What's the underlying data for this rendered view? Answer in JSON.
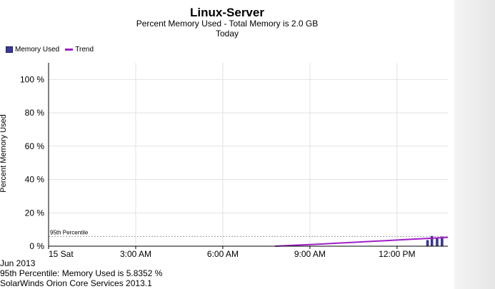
{
  "chart": {
    "title": "Linux-Server",
    "subtitle": "Percent Memory Used - Total Memory is 2.0 GB",
    "period": "Today",
    "legend": [
      {
        "label": "Memory Used",
        "color": "#3a3a9a",
        "kind": "bar"
      },
      {
        "label": "Trend",
        "color": "#a020c8",
        "kind": "line"
      }
    ],
    "ylabel": "Percent Memory Used"
  },
  "chart_data": {
    "type": "bar",
    "title": "Linux-Server",
    "subtitle": "Percent Memory Used - Total Memory is 2.0 GB",
    "ylabel": "Percent Memory Used",
    "ylim": [
      0,
      110
    ],
    "yticks": [
      {
        "value": 0,
        "label": "0 %"
      },
      {
        "value": 20,
        "label": "20 %"
      },
      {
        "value": 40,
        "label": "40 %"
      },
      {
        "value": 60,
        "label": "60 %"
      },
      {
        "value": 80,
        "label": "80 %"
      },
      {
        "value": 100,
        "label": "100 %"
      }
    ],
    "xlim_hours": [
      0,
      13.75
    ],
    "xticks": [
      {
        "hour": 0,
        "label": "15 Sat"
      },
      {
        "hour": 3,
        "label": "3:00 AM"
      },
      {
        "hour": 6,
        "label": "6:00 AM"
      },
      {
        "hour": 9,
        "label": "9:00 AM"
      },
      {
        "hour": 12,
        "label": "12:00 PM"
      }
    ],
    "grid": true,
    "series": [
      {
        "name": "Memory Used",
        "kind": "bar",
        "color": "#3a3a9a",
        "points": [
          {
            "hour": 13.05,
            "value": 3.5
          },
          {
            "hour": 13.2,
            "value": 6.0
          },
          {
            "hour": 13.38,
            "value": 4.8
          },
          {
            "hour": 13.55,
            "value": 5.6
          }
        ]
      },
      {
        "name": "Trend",
        "kind": "line",
        "color": "#a020c8",
        "points": [
          {
            "hour": 7.8,
            "value": 0.0
          },
          {
            "hour": 8.5,
            "value": 0.6
          },
          {
            "hour": 9.0,
            "value": 1.0
          },
          {
            "hour": 9.5,
            "value": 1.4
          },
          {
            "hour": 10.0,
            "value": 1.9
          },
          {
            "hour": 10.5,
            "value": 2.3
          },
          {
            "hour": 11.0,
            "value": 2.8
          },
          {
            "hour": 11.5,
            "value": 3.2
          },
          {
            "hour": 12.0,
            "value": 3.7
          },
          {
            "hour": 12.5,
            "value": 4.2
          },
          {
            "hour": 13.0,
            "value": 4.6
          },
          {
            "hour": 13.75,
            "value": 5.3
          }
        ]
      }
    ],
    "percentile": {
      "label": "95th Percentile",
      "value": 5.8352
    }
  },
  "footer": {
    "month": "Jun 2013",
    "percentile_text": "95th Percentile: Memory Used is 5.8352  %",
    "credits": "SolarWinds Orion Core Services 2013.1"
  }
}
